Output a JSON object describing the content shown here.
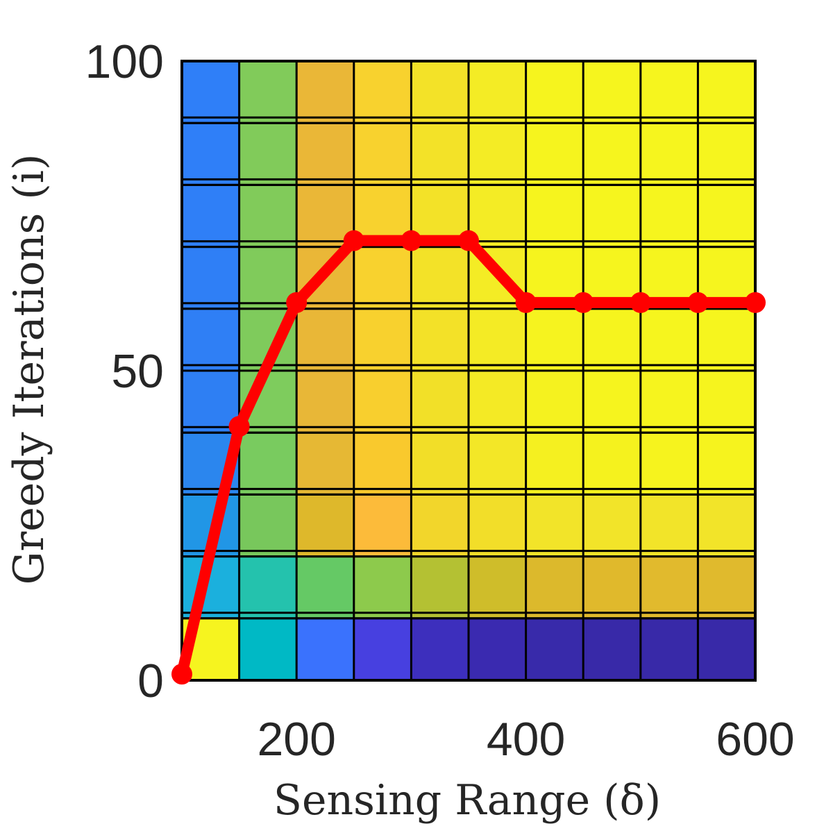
{
  "chart_data": {
    "type": "heatmap",
    "title": "",
    "xlabel": "Sensing Range (δ)",
    "ylabel": "Greedy Iterations (i)",
    "xlim": [
      100,
      600
    ],
    "ylim": [
      0,
      100
    ],
    "x_ticks": [
      {
        "value": 200,
        "label": "200"
      },
      {
        "value": 400,
        "label": "400"
      },
      {
        "value": 600,
        "label": "600"
      }
    ],
    "y_ticks": [
      {
        "value": 0,
        "label": "0"
      },
      {
        "value": 50,
        "label": "50"
      },
      {
        "value": 100,
        "label": "100"
      }
    ],
    "grid": true,
    "heatmap": {
      "x_edges": [
        100,
        150,
        200,
        250,
        300,
        350,
        400,
        450,
        500,
        550,
        600
      ],
      "y_rows": [
        {
          "y0": 0,
          "y1": 10,
          "colors": [
            "#f6f41f",
            "#00b9c5",
            "#3a72fd",
            "#4740e0",
            "#3d2fbd",
            "#3a2ab0",
            "#382aaa",
            "#3829a8",
            "#3829a8",
            "#3829a8"
          ]
        },
        {
          "y0": 10,
          "y1": 20,
          "colors": [
            "#1bb0dd",
            "#24c2ad",
            "#65c965",
            "#8dca4c",
            "#b4c133",
            "#cfbd2a",
            "#dcb92c",
            "#e0b92c",
            "#e1ba2d",
            "#e0ba2d"
          ]
        },
        {
          "y0": 20,
          "y1": 30,
          "colors": [
            "#2196e6",
            "#78c75c",
            "#deb82b",
            "#fcbb3a",
            "#f2d62b",
            "#f2de29",
            "#f2e429",
            "#f2e429",
            "#f2e429",
            "#f2e429"
          ]
        },
        {
          "y0": 30,
          "y1": 40,
          "colors": [
            "#2b86ee",
            "#79cb5f",
            "#e6b834",
            "#f9c92d",
            "#f2de28",
            "#f3e727",
            "#f5f020",
            "#f5f21e",
            "#f6f31e",
            "#f6f31e"
          ]
        },
        {
          "y0": 40,
          "y1": 50,
          "colors": [
            "#2e7ff3",
            "#7ecc5d",
            "#e8b737",
            "#f8cf2e",
            "#f2e028",
            "#f4ea25",
            "#f5f21f",
            "#f6f41e",
            "#f6f41e",
            "#f6f41e"
          ]
        },
        {
          "y0": 50,
          "y1": 60,
          "colors": [
            "#2f7ff5",
            "#7fcb5c",
            "#e9b737",
            "#f8d12e",
            "#f3e128",
            "#f4eb25",
            "#f6f31f",
            "#f6f41e",
            "#f6f51e",
            "#f6f51e"
          ]
        },
        {
          "y0": 60,
          "y1": 70,
          "colors": [
            "#2f7ff6",
            "#80cb5b",
            "#eab737",
            "#f8d22e",
            "#f3e228",
            "#f4ec25",
            "#f6f41e",
            "#f6f51e",
            "#f6f51e",
            "#f6f51e"
          ]
        },
        {
          "y0": 70,
          "y1": 80,
          "colors": [
            "#2f7ff7",
            "#81cb5a",
            "#eab737",
            "#f8d22e",
            "#f3e228",
            "#f4ec25",
            "#f6f41e",
            "#f6f51e",
            "#f6f51e",
            "#f6f51e"
          ]
        },
        {
          "y0": 80,
          "y1": 90,
          "colors": [
            "#2f7ff8",
            "#81cb5a",
            "#eab737",
            "#f8d22e",
            "#f3e228",
            "#f4ec25",
            "#f6f41e",
            "#f6f51e",
            "#f6f51e",
            "#f6f51e"
          ]
        },
        {
          "y0": 90,
          "y1": 100,
          "colors": [
            "#2f7ff8",
            "#81cb5a",
            "#eab737",
            "#f8d22e",
            "#f3e228",
            "#f4ec25",
            "#f6f41e",
            "#f6f51e",
            "#f6f51e",
            "#f6f51e"
          ]
        }
      ]
    },
    "series": [
      {
        "color": "#ff0000",
        "x": [
          100,
          150,
          200,
          250,
          300,
          350,
          400,
          450,
          500,
          550,
          600
        ],
        "y": [
          1,
          41,
          61,
          71,
          71,
          71,
          61,
          61,
          61,
          61,
          61
        ]
      }
    ]
  }
}
